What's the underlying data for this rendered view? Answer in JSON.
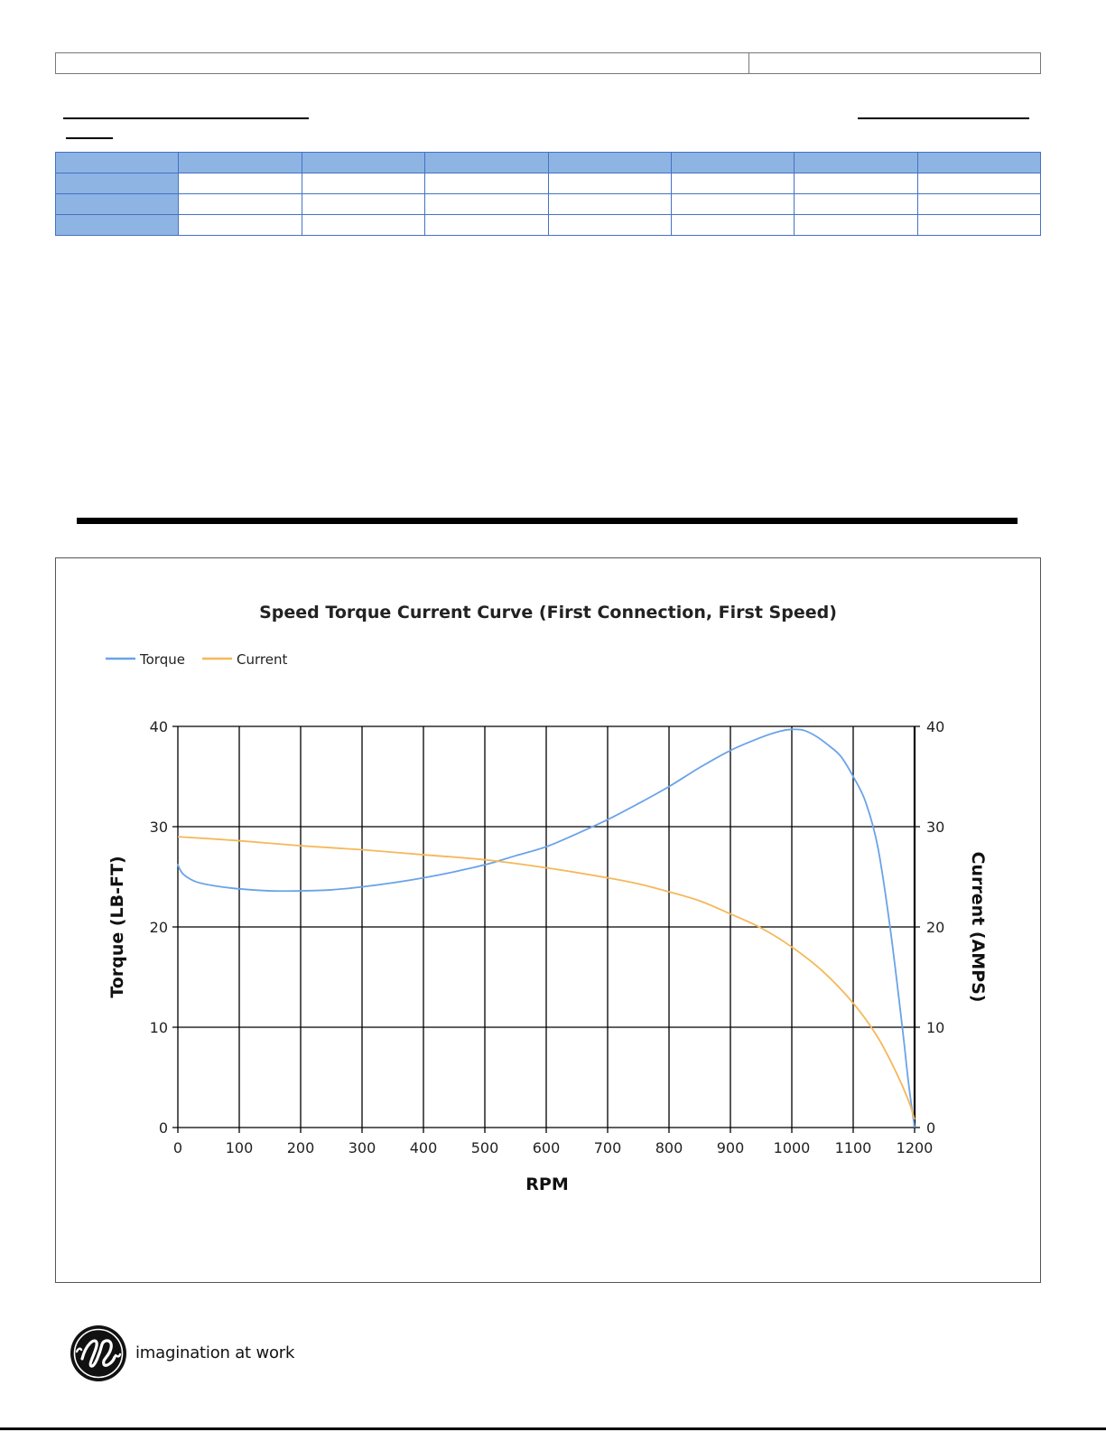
{
  "footer": {
    "tagline": "imagination at work"
  },
  "colors": {
    "torque": "#6aa3e8",
    "current": "#f5b85a",
    "table_header": "#8eb4e3",
    "table_border": "#4472c4"
  },
  "chart_data": {
    "type": "line",
    "title": "Speed Torque Current Curve (First Connection, First Speed)",
    "xlabel": "RPM",
    "ylabel": "Torque (LB-FT)",
    "y2label": "Current (AMPS)",
    "xlim": [
      0,
      1200
    ],
    "ylim": [
      0,
      40
    ],
    "y2lim": [
      0,
      40
    ],
    "xticks": [
      "0",
      "100",
      "200",
      "300",
      "400",
      "500",
      "600",
      "700",
      "800",
      "900",
      "1000",
      "1100",
      "1200"
    ],
    "yticks": [
      "0",
      "10",
      "20",
      "30",
      "40"
    ],
    "y2ticks": [
      "0",
      "10",
      "20",
      "30",
      "40"
    ],
    "grid": true,
    "legend": "top-left",
    "series": [
      {
        "name": "Torque",
        "axis": "left",
        "color": "#6aa3e8",
        "x": [
          0,
          2,
          10,
          30,
          60,
          100,
          150,
          200,
          250,
          300,
          350,
          400,
          450,
          500,
          550,
          600,
          650,
          700,
          750,
          800,
          850,
          900,
          950,
          980,
          1000,
          1020,
          1040,
          1060,
          1080,
          1100,
          1120,
          1140,
          1160,
          1180,
          1190,
          1200
        ],
        "y": [
          26.3,
          25.9,
          25.2,
          24.5,
          24.1,
          23.8,
          23.6,
          23.6,
          23.7,
          24.0,
          24.4,
          24.9,
          25.5,
          26.2,
          27.1,
          28.0,
          29.3,
          30.7,
          32.3,
          34.0,
          35.9,
          37.6,
          38.9,
          39.5,
          39.7,
          39.6,
          39.0,
          38.1,
          37.0,
          35.0,
          32.5,
          28.0,
          20.0,
          10.0,
          4.5,
          0.0
        ]
      },
      {
        "name": "Current",
        "axis": "right",
        "color": "#f5b85a",
        "x": [
          0,
          100,
          200,
          300,
          400,
          500,
          600,
          700,
          750,
          800,
          850,
          900,
          950,
          1000,
          1050,
          1100,
          1140,
          1170,
          1190,
          1200
        ],
        "y": [
          29.0,
          28.6,
          28.1,
          27.7,
          27.2,
          26.7,
          25.9,
          24.9,
          24.3,
          23.5,
          22.6,
          21.3,
          19.9,
          18.0,
          15.6,
          12.4,
          9.0,
          5.5,
          2.7,
          0.8
        ]
      }
    ]
  }
}
